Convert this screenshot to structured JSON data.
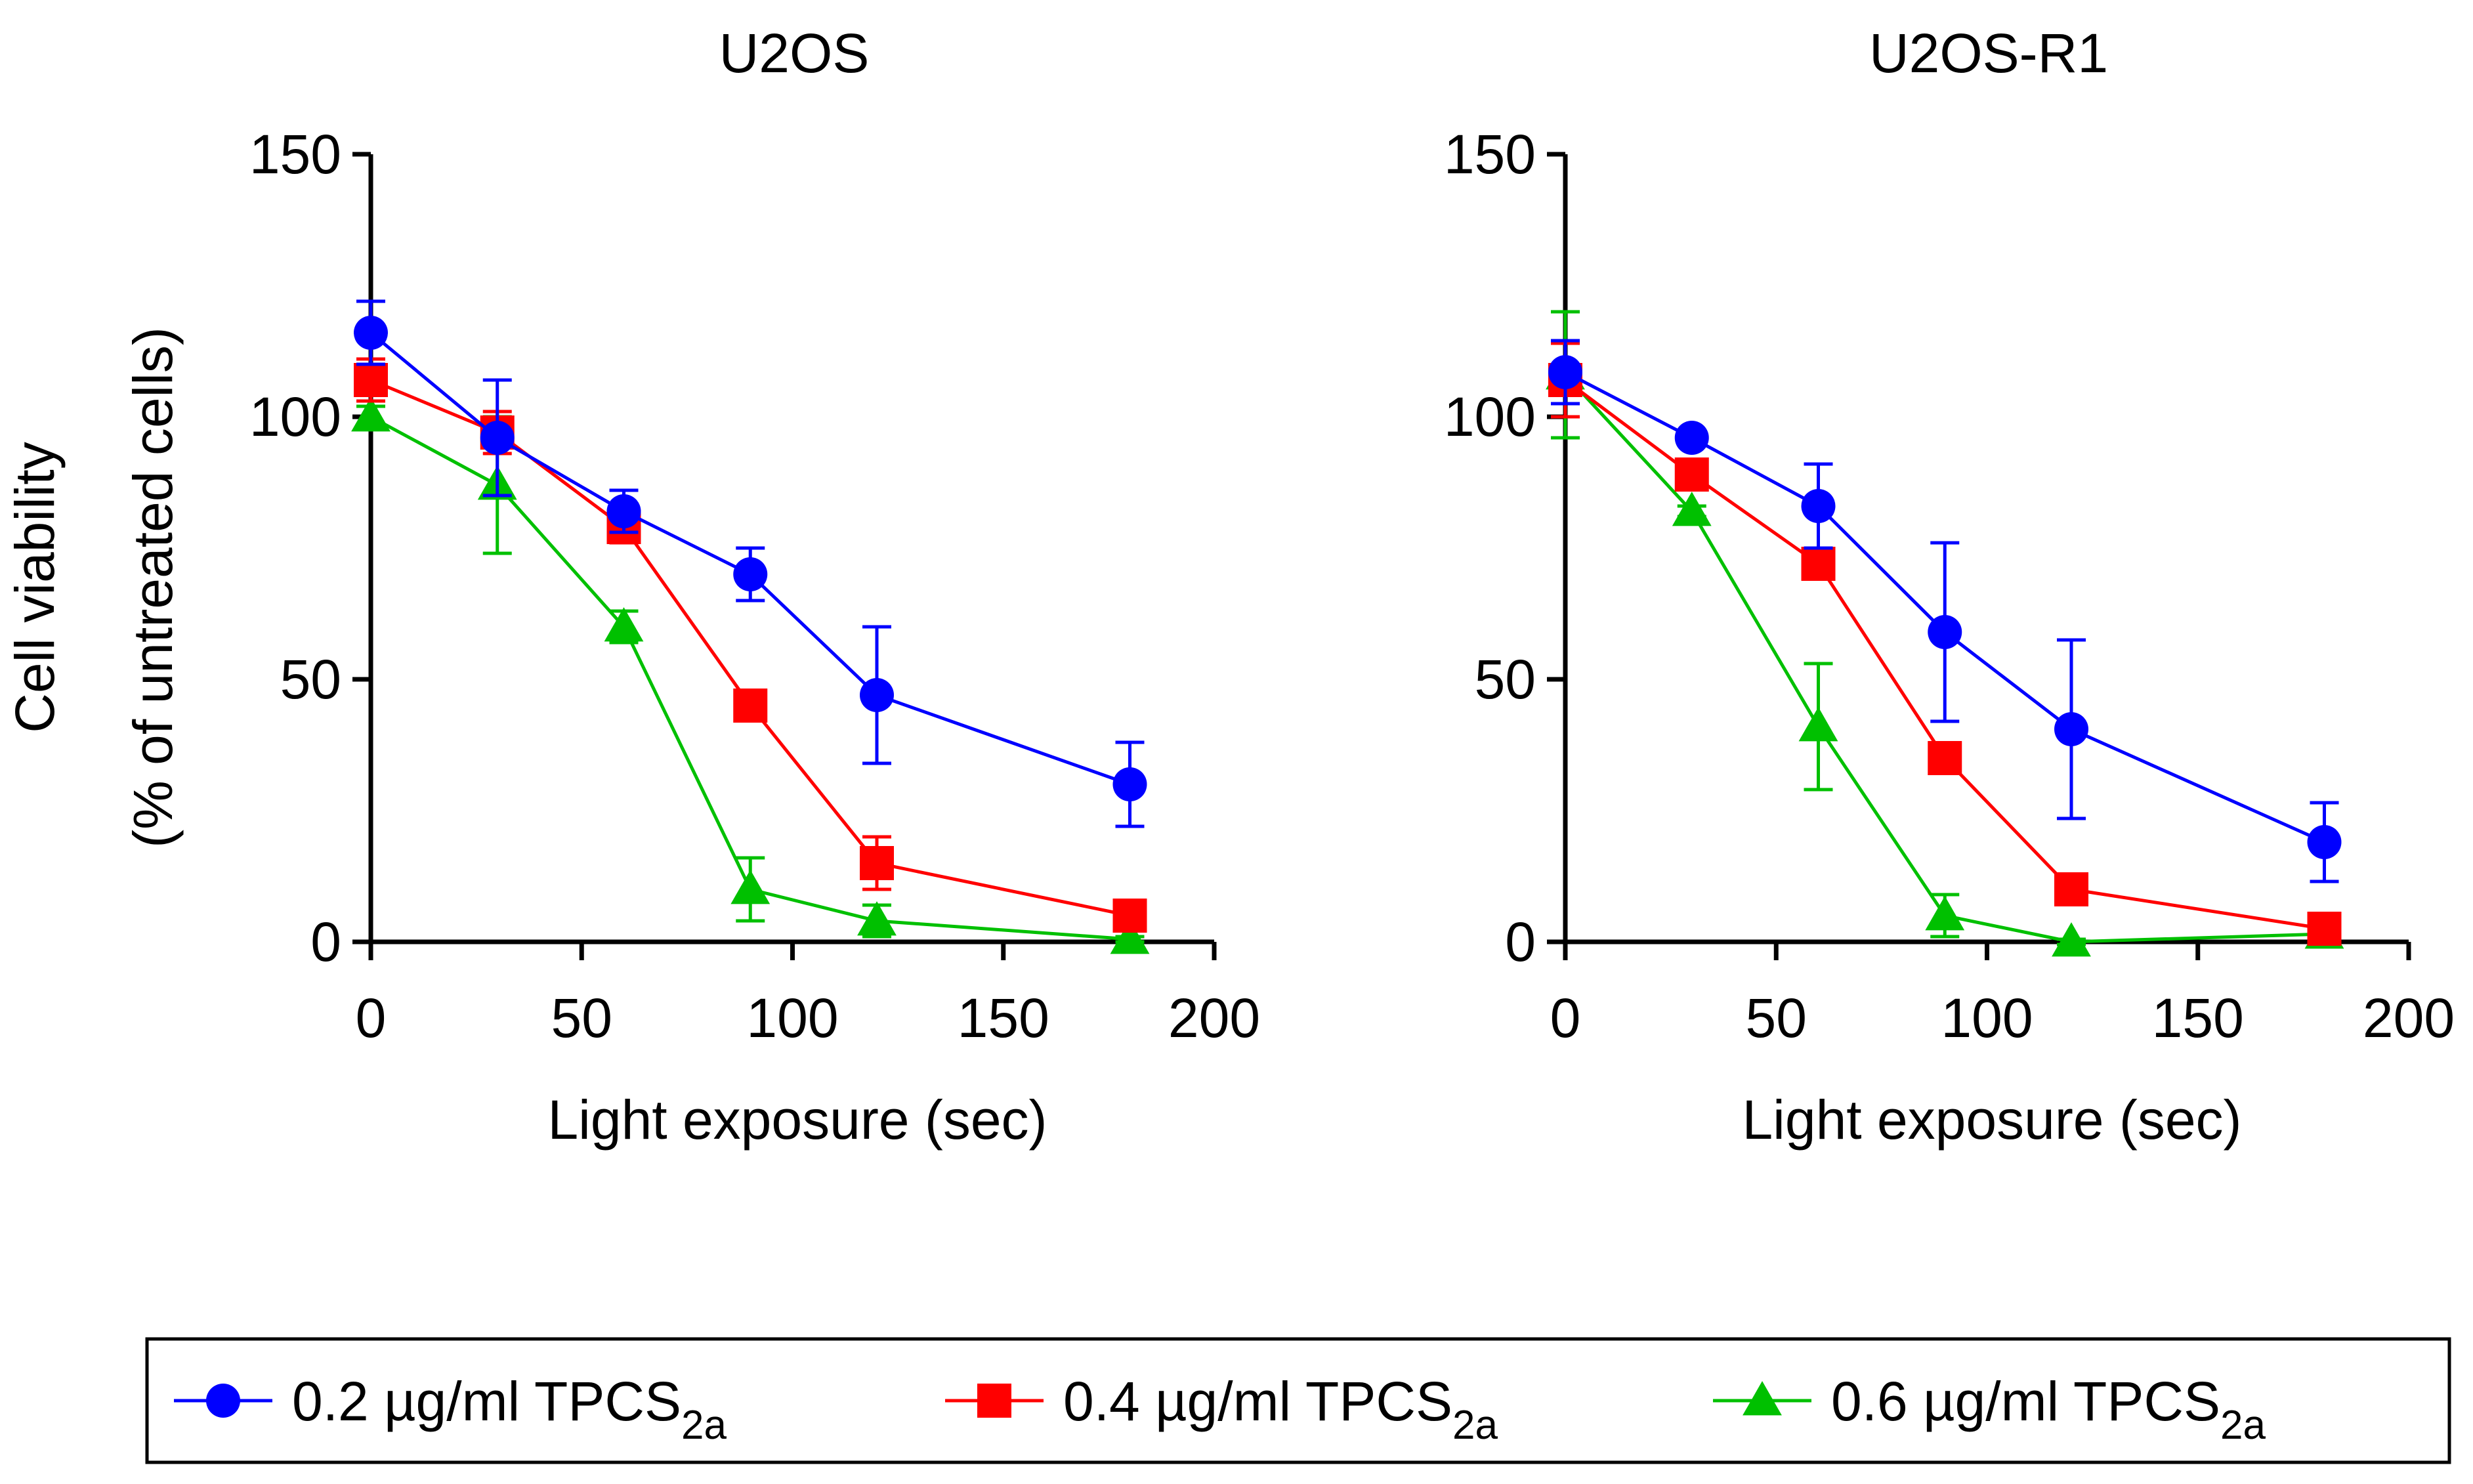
{
  "chart_data": [
    {
      "type": "line",
      "title": "U2OS",
      "xlabel": "Light exposure (sec)",
      "ylabel": "Cell viability",
      "ylabel_line2": "(% of untreated cells)",
      "xlim": [
        0,
        200
      ],
      "ylim": [
        0,
        150
      ],
      "xticks": [
        "0",
        "50",
        "100",
        "150",
        "200"
      ],
      "yticks": [
        "0",
        "50",
        "100",
        "150"
      ],
      "grid": false,
      "x": [
        0,
        30,
        60,
        90,
        120,
        180
      ],
      "series": [
        {
          "name": "0.2 µg/ml TPCS2a",
          "marker": "circle",
          "color": "#0000ff",
          "values": [
            116,
            96,
            82,
            70,
            47,
            30
          ],
          "error": [
            6,
            11,
            4,
            5,
            13,
            8
          ]
        },
        {
          "name": "0.4 µg/ml TPCS2a",
          "marker": "square",
          "color": "#ff0000",
          "values": [
            107,
            97,
            79,
            45,
            15,
            5
          ],
          "error": [
            4,
            4,
            3,
            2,
            5,
            1
          ]
        },
        {
          "name": "0.6 µg/ml TPCS2a",
          "marker": "triangle",
          "color": "#00c000",
          "values": [
            100,
            87,
            60,
            10,
            4,
            0.5
          ],
          "error": [
            2,
            13,
            3,
            6,
            3,
            0.5
          ]
        }
      ]
    },
    {
      "type": "line",
      "title": "U2OS-R1",
      "xlabel": "Light exposure (sec)",
      "ylabel": "",
      "xlim": [
        0,
        200
      ],
      "ylim": [
        0,
        150
      ],
      "xticks": [
        "0",
        "50",
        "100",
        "150",
        "200"
      ],
      "yticks": [
        "0",
        "50",
        "100",
        "150"
      ],
      "grid": false,
      "x": [
        0,
        30,
        60,
        90,
        120,
        180
      ],
      "series": [
        {
          "name": "0.2 µg/ml TPCS2a",
          "marker": "circle",
          "color": "#0000ff",
          "values": [
            108.5,
            96,
            83,
            59,
            40.5,
            19
          ],
          "error": [
            6,
            1,
            8,
            17,
            17,
            7.5
          ]
        },
        {
          "name": "0.4 µg/ml TPCS2a",
          "marker": "square",
          "color": "#ff0000",
          "values": [
            107,
            89,
            72,
            35,
            10,
            2.5
          ],
          "error": [
            7,
            1,
            1,
            1,
            1,
            1
          ]
        },
        {
          "name": "0.6 µg/ml TPCS2a",
          "marker": "triangle",
          "color": "#00c000",
          "values": [
            108,
            82,
            41,
            5,
            0,
            1.5
          ],
          "error": [
            12,
            1,
            12,
            4,
            0.5,
            0.5
          ]
        }
      ]
    }
  ],
  "legend": {
    "placement": "bottom",
    "items": [
      {
        "main": "0.2 µg/ml TPCS",
        "sub": "2a",
        "marker": "circle",
        "color": "#0000ff"
      },
      {
        "main": "0.4 µg/ml TPCS",
        "sub": "2a",
        "marker": "square",
        "color": "#ff0000"
      },
      {
        "main": "0.6 µg/ml TPCS",
        "sub": "2a",
        "marker": "triangle",
        "color": "#00c000"
      }
    ]
  }
}
